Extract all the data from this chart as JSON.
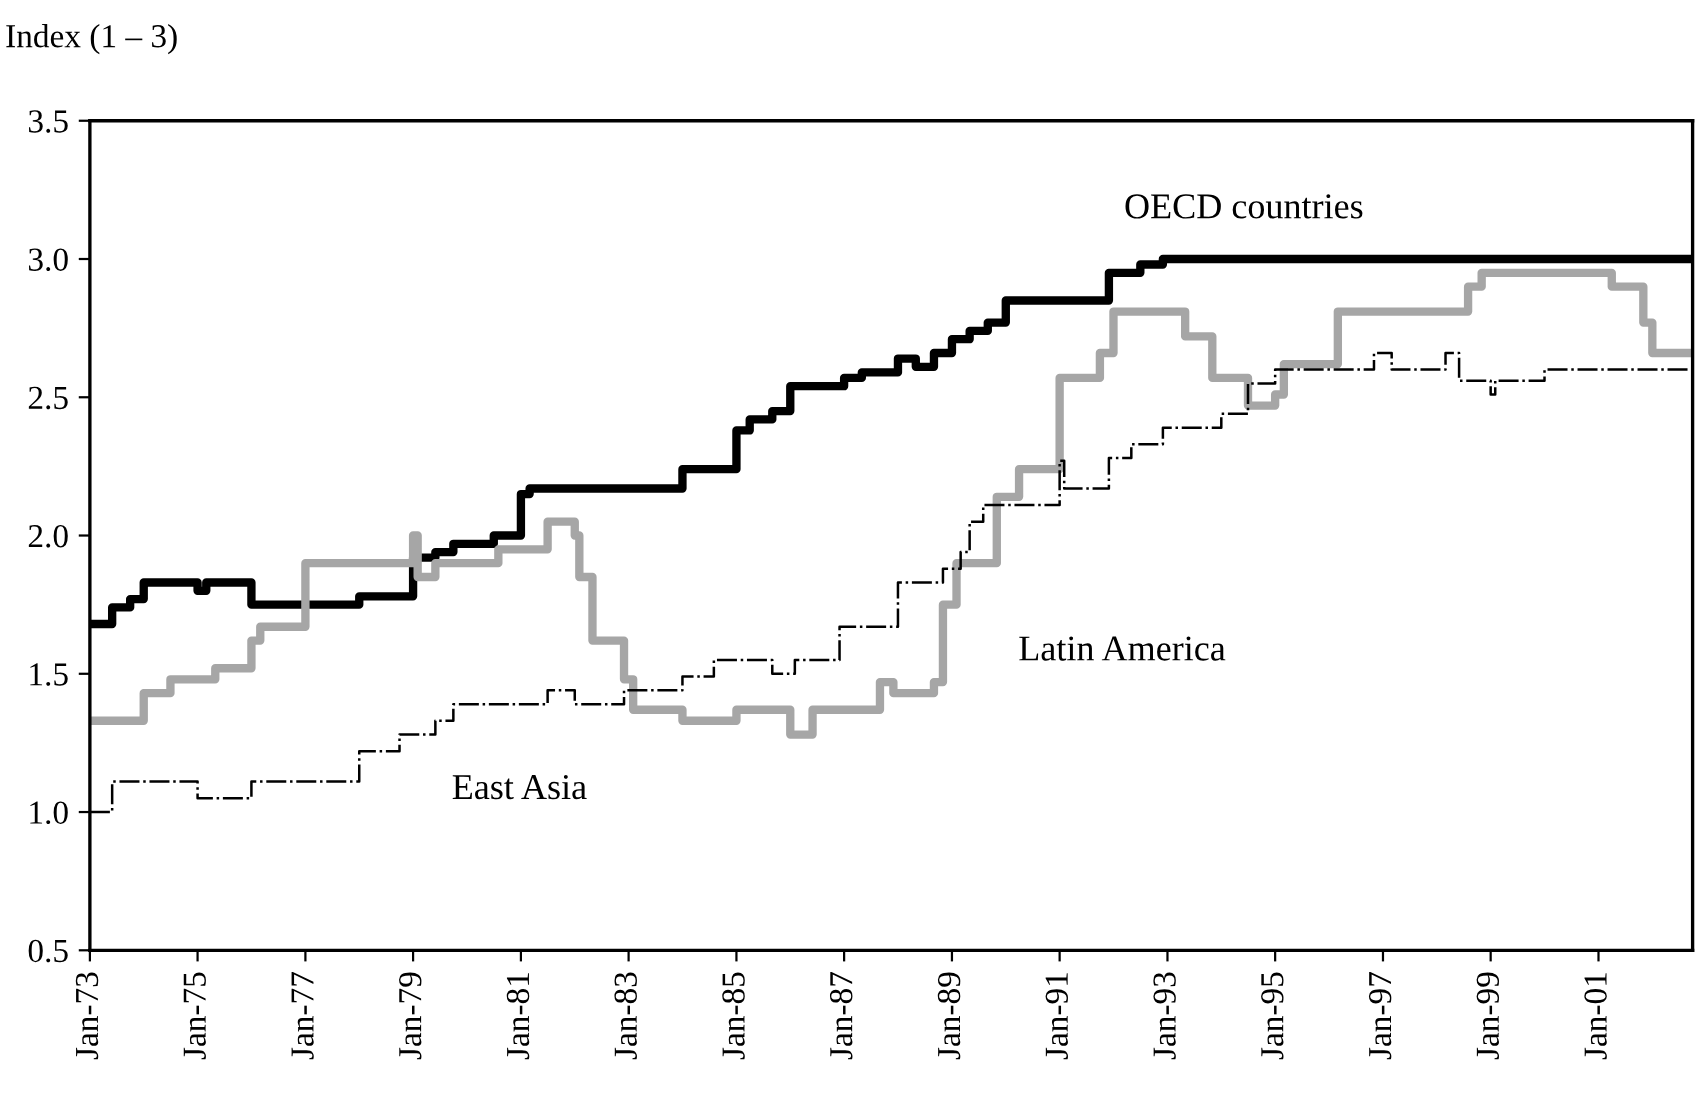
{
  "chart_data": {
    "type": "step",
    "ylabel": "Index (1 – 3)",
    "xlim": [
      "1973-01",
      "2002-10"
    ],
    "xticks": [
      {
        "value": "1973-01",
        "label": "Jan-73"
      },
      {
        "value": "1975-01",
        "label": "Jan-75"
      },
      {
        "value": "1977-01",
        "label": "Jan-77"
      },
      {
        "value": "1979-01",
        "label": "Jan-79"
      },
      {
        "value": "1981-01",
        "label": "Jan-81"
      },
      {
        "value": "1983-01",
        "label": "Jan-83"
      },
      {
        "value": "1985-01",
        "label": "Jan-85"
      },
      {
        "value": "1987-01",
        "label": "Jan-87"
      },
      {
        "value": "1989-01",
        "label": "Jan-89"
      },
      {
        "value": "1991-01",
        "label": "Jan-91"
      },
      {
        "value": "1993-01",
        "label": "Jan-93"
      },
      {
        "value": "1995-01",
        "label": "Jan-95"
      },
      {
        "value": "1997-01",
        "label": "Jan-97"
      },
      {
        "value": "1999-01",
        "label": "Jan-99"
      },
      {
        "value": "2001-01",
        "label": "Jan-01"
      }
    ],
    "ylim": [
      0.5,
      3.5
    ],
    "yticks": [
      0.5,
      {
        "value": 1,
        "label": "1.0"
      },
      1.5,
      {
        "value": 2,
        "label": "2.0"
      },
      2.5,
      {
        "value": 3,
        "label": "3.0"
      },
      3.5
    ],
    "grid": false,
    "series": [
      {
        "name": "OECD countries",
        "color": "#000000",
        "line_style": "solid",
        "x": [
          "1973-01",
          "1973-06",
          "1973-10",
          "1974-01",
          "1975-01",
          "1975-03",
          "1976-01",
          "1978-01",
          "1979-01",
          "1979-06",
          "1979-10",
          "1980-07",
          "1981-01",
          "1981-03",
          "1984-01",
          "1985-01",
          "1985-04",
          "1985-09",
          "1986-01",
          "1987-01",
          "1987-05",
          "1988-01",
          "1988-05",
          "1988-09",
          "1989-01",
          "1989-05",
          "1989-09",
          "1990-01",
          "1991-12",
          "1992-07",
          "1992-12",
          "2002-10"
        ],
        "values": [
          1.68,
          1.74,
          1.77,
          1.83,
          1.8,
          1.83,
          1.75,
          1.78,
          1.92,
          1.94,
          1.97,
          2.0,
          2.15,
          2.17,
          2.24,
          2.38,
          2.42,
          2.45,
          2.54,
          2.57,
          2.59,
          2.64,
          2.61,
          2.66,
          2.71,
          2.74,
          2.77,
          2.85,
          2.95,
          2.98,
          3.0,
          3.0
        ]
      },
      {
        "name": "Latin America",
        "color": "#a6a6a6",
        "line_style": "solid",
        "x": [
          "1973-01",
          "1974-01",
          "1974-07",
          "1975-05",
          "1976-01",
          "1976-03",
          "1977-01",
          "1979-01",
          "1979-02",
          "1979-06",
          "1980-08",
          "1981-07",
          "1982-01",
          "1982-02",
          "1982-05",
          "1982-12",
          "1983-02",
          "1984-01",
          "1985-01",
          "1986-01",
          "1986-06",
          "1987-09",
          "1987-12",
          "1988-09",
          "1988-11",
          "1989-02",
          "1989-11",
          "1990-04",
          "1991-01",
          "1991-10",
          "1992-01",
          "1993-05",
          "1993-11",
          "1994-07",
          "1995-01",
          "1995-03",
          "1996-03",
          "1998-08",
          "1998-11",
          "2001-04",
          "2001-11",
          "2002-01",
          "2002-10"
        ],
        "values": [
          1.33,
          1.43,
          1.48,
          1.52,
          1.62,
          1.67,
          1.9,
          2.0,
          1.85,
          1.9,
          1.95,
          2.05,
          2.0,
          1.85,
          1.62,
          1.48,
          1.37,
          1.33,
          1.37,
          1.28,
          1.37,
          1.47,
          1.43,
          1.47,
          1.75,
          1.9,
          2.14,
          2.24,
          2.57,
          2.66,
          2.81,
          2.72,
          2.57,
          2.47,
          2.51,
          2.62,
          2.81,
          2.9,
          2.95,
          2.9,
          2.77,
          2.66,
          2.66
        ]
      },
      {
        "name": "East Asia",
        "color": "#000000",
        "line_style": "dashed",
        "x": [
          "1973-01",
          "1973-06",
          "1975-01",
          "1976-01",
          "1978-01",
          "1978-10",
          "1979-06",
          "1979-10",
          "1981-07",
          "1982-01",
          "1982-12",
          "1984-01",
          "1984-08",
          "1985-09",
          "1986-02",
          "1986-12",
          "1988-01",
          "1988-11",
          "1989-03",
          "1989-05",
          "1989-08",
          "1991-01",
          "1991-02",
          "1991-12",
          "1992-05",
          "1992-12",
          "1994-01",
          "1994-07",
          "1995-01",
          "1996-11",
          "1997-03",
          "1998-03",
          "1998-06",
          "1999-01",
          "1999-02",
          "2000-01",
          "2002-10"
        ],
        "values": [
          1.0,
          1.11,
          1.05,
          1.11,
          1.22,
          1.28,
          1.33,
          1.39,
          1.44,
          1.39,
          1.44,
          1.49,
          1.55,
          1.5,
          1.55,
          1.67,
          1.83,
          1.88,
          1.94,
          2.05,
          2.11,
          2.27,
          2.17,
          2.28,
          2.33,
          2.39,
          2.44,
          2.55,
          2.6,
          2.66,
          2.6,
          2.66,
          2.56,
          2.51,
          2.56,
          2.6,
          2.6
        ]
      }
    ]
  }
}
